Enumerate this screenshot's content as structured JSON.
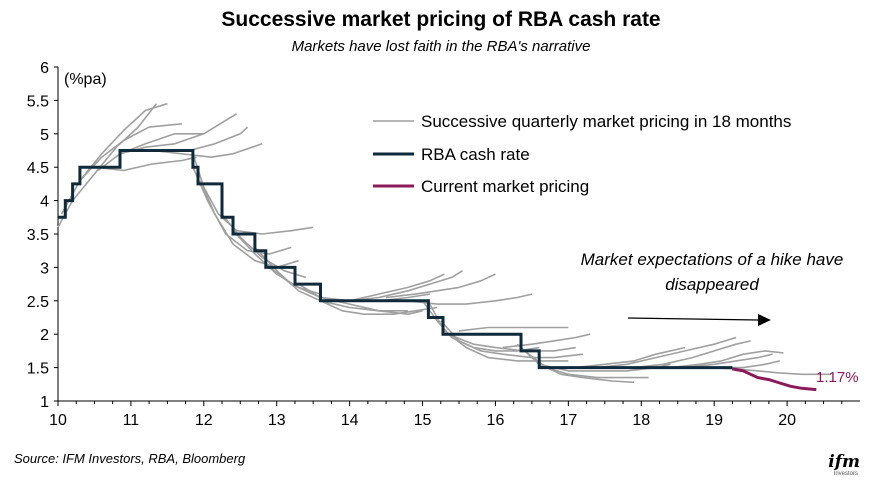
{
  "chart_data": {
    "type": "line",
    "title": "Successive market pricing of RBA cash rate",
    "subtitle": "Markets have lost faith in the RBA's narrative",
    "ylabel": "(%pa)",
    "xlabel": "",
    "xlim": [
      10,
      21
    ],
    "ylim": [
      1,
      6
    ],
    "x_ticks": [
      "10",
      "11",
      "12",
      "13",
      "14",
      "15",
      "16",
      "17",
      "18",
      "19",
      "20"
    ],
    "y_ticks": [
      "1",
      "1.5",
      "2",
      "2.5",
      "3",
      "3.5",
      "4",
      "4.5",
      "5",
      "5.5",
      "6"
    ],
    "legend": [
      {
        "label": "Successive quarterly market pricing in 18 months",
        "color": "#999999"
      },
      {
        "label": "RBA cash rate",
        "color": "#0e2a3b"
      },
      {
        "label": "Current market pricing",
        "color": "#8b1a5a"
      }
    ],
    "annotation": {
      "line1": "Market expectations of a hike have",
      "line2": "disappeared"
    },
    "end_label": "1.17%",
    "source": "Source: IFM Investors, RBA, Bloomberg",
    "series": [
      {
        "name": "RBA cash rate",
        "points": [
          [
            10,
            3.75
          ],
          [
            10.1,
            3.75
          ],
          [
            10.1,
            4.0
          ],
          [
            10.2,
            4.0
          ],
          [
            10.2,
            4.25
          ],
          [
            10.3,
            4.25
          ],
          [
            10.3,
            4.5
          ],
          [
            10.85,
            4.5
          ],
          [
            10.85,
            4.75
          ],
          [
            11.85,
            4.75
          ],
          [
            11.85,
            4.5
          ],
          [
            11.92,
            4.5
          ],
          [
            11.92,
            4.25
          ],
          [
            12.25,
            4.25
          ],
          [
            12.25,
            3.75
          ],
          [
            12.4,
            3.75
          ],
          [
            12.4,
            3.5
          ],
          [
            12.7,
            3.5
          ],
          [
            12.7,
            3.25
          ],
          [
            12.85,
            3.25
          ],
          [
            12.85,
            3.0
          ],
          [
            13.25,
            3.0
          ],
          [
            13.25,
            2.75
          ],
          [
            13.6,
            2.75
          ],
          [
            13.6,
            2.5
          ],
          [
            15.08,
            2.5
          ],
          [
            15.08,
            2.25
          ],
          [
            15.28,
            2.25
          ],
          [
            15.28,
            2.0
          ],
          [
            16.35,
            2.0
          ],
          [
            16.35,
            1.75
          ],
          [
            16.6,
            1.75
          ],
          [
            16.6,
            1.5
          ],
          [
            19.25,
            1.5
          ]
        ]
      },
      {
        "name": "Current market pricing",
        "points": [
          [
            19.25,
            1.48
          ],
          [
            19.4,
            1.45
          ],
          [
            19.5,
            1.4
          ],
          [
            19.6,
            1.35
          ],
          [
            19.75,
            1.32
          ],
          [
            19.9,
            1.27
          ],
          [
            20.05,
            1.22
          ],
          [
            20.2,
            1.19
          ],
          [
            20.4,
            1.17
          ]
        ]
      },
      {
        "name": "Successive quarterly market pricing in 18 months",
        "paths": [
          [
            [
              10,
              3.6
            ],
            [
              10.2,
              4.0
            ],
            [
              10.5,
              4.4
            ],
            [
              10.8,
              4.8
            ],
            [
              11.1,
              5.1
            ],
            [
              11.35,
              5.45
            ]
          ],
          [
            [
              10.05,
              3.8
            ],
            [
              10.3,
              4.3
            ],
            [
              10.6,
              4.7
            ],
            [
              10.9,
              5.05
            ],
            [
              11.2,
              5.35
            ],
            [
              11.5,
              5.45
            ]
          ],
          [
            [
              10.3,
              4.3
            ],
            [
              10.6,
              4.65
            ],
            [
              10.9,
              4.9
            ],
            [
              11.25,
              5.1
            ],
            [
              11.7,
              5.15
            ]
          ],
          [
            [
              10.55,
              4.45
            ],
            [
              10.85,
              4.7
            ],
            [
              11.2,
              4.85
            ],
            [
              11.6,
              5.0
            ],
            [
              12.0,
              5.0
            ]
          ],
          [
            [
              10.85,
              4.7
            ],
            [
              11.2,
              4.8
            ],
            [
              11.6,
              4.85
            ],
            [
              12.0,
              5.0
            ],
            [
              12.3,
              5.2
            ],
            [
              12.45,
              5.3
            ]
          ],
          [
            [
              11.1,
              4.75
            ],
            [
              11.45,
              4.75
            ],
            [
              11.8,
              4.75
            ],
            [
              12.15,
              4.85
            ],
            [
              12.5,
              5.0
            ],
            [
              12.6,
              5.1
            ]
          ],
          [
            [
              11.3,
              4.75
            ],
            [
              11.7,
              4.7
            ],
            [
              12.1,
              4.65
            ],
            [
              12.4,
              4.7
            ],
            [
              12.8,
              4.85
            ]
          ],
          [
            [
              10.5,
              4.5
            ],
            [
              10.9,
              4.45
            ],
            [
              11.3,
              4.55
            ],
            [
              11.7,
              4.6
            ],
            [
              11.9,
              4.65
            ]
          ],
          [
            [
              11.85,
              4.7
            ],
            [
              12.0,
              4.2
            ],
            [
              12.2,
              3.8
            ],
            [
              12.45,
              3.55
            ],
            [
              12.8,
              3.5
            ],
            [
              13.2,
              3.55
            ],
            [
              13.5,
              3.6
            ]
          ],
          [
            [
              11.85,
              4.5
            ],
            [
              12.05,
              4.0
            ],
            [
              12.3,
              3.5
            ],
            [
              12.6,
              3.25
            ],
            [
              12.9,
              3.2
            ],
            [
              13.2,
              3.3
            ]
          ],
          [
            [
              11.95,
              4.3
            ],
            [
              12.15,
              3.8
            ],
            [
              12.4,
              3.35
            ],
            [
              12.7,
              3.1
            ],
            [
              13.0,
              3.0
            ],
            [
              13.3,
              3.1
            ]
          ],
          [
            [
              12.25,
              3.8
            ],
            [
              12.5,
              3.45
            ],
            [
              12.8,
              3.15
            ],
            [
              13.1,
              2.95
            ],
            [
              13.4,
              2.85
            ]
          ],
          [
            [
              12.4,
              3.55
            ],
            [
              12.7,
              3.2
            ],
            [
              13.0,
              2.9
            ],
            [
              13.3,
              2.7
            ],
            [
              13.6,
              2.6
            ]
          ],
          [
            [
              12.7,
              3.3
            ],
            [
              13.0,
              2.95
            ],
            [
              13.3,
              2.65
            ],
            [
              13.6,
              2.5
            ],
            [
              14.0,
              2.4
            ],
            [
              14.4,
              2.35
            ],
            [
              14.8,
              2.35
            ]
          ],
          [
            [
              12.85,
              3.05
            ],
            [
              13.2,
              2.75
            ],
            [
              13.6,
              2.55
            ],
            [
              14.0,
              2.5
            ],
            [
              14.4,
              2.5
            ],
            [
              14.8,
              2.55
            ],
            [
              15.1,
              2.6
            ]
          ],
          [
            [
              13.3,
              2.75
            ],
            [
              13.6,
              2.55
            ],
            [
              14.0,
              2.45
            ],
            [
              14.4,
              2.35
            ],
            [
              14.8,
              2.3
            ],
            [
              15.0,
              2.35
            ]
          ],
          [
            [
              13.6,
              2.5
            ],
            [
              13.9,
              2.35
            ],
            [
              14.2,
              2.3
            ],
            [
              14.6,
              2.3
            ],
            [
              14.9,
              2.35
            ],
            [
              15.2,
              2.4
            ]
          ],
          [
            [
              13.6,
              2.55
            ],
            [
              14.0,
              2.5
            ],
            [
              14.4,
              2.6
            ],
            [
              14.8,
              2.7
            ],
            [
              15.1,
              2.8
            ],
            [
              15.3,
              2.9
            ]
          ],
          [
            [
              14.0,
              2.5
            ],
            [
              14.4,
              2.55
            ],
            [
              14.8,
              2.65
            ],
            [
              15.1,
              2.75
            ],
            [
              15.4,
              2.85
            ],
            [
              15.55,
              2.95
            ]
          ],
          [
            [
              14.5,
              2.55
            ],
            [
              14.9,
              2.6
            ],
            [
              15.2,
              2.65
            ],
            [
              15.5,
              2.7
            ],
            [
              15.8,
              2.8
            ],
            [
              16.0,
              2.9
            ]
          ],
          [
            [
              14.8,
              2.5
            ],
            [
              15.2,
              2.45
            ],
            [
              15.6,
              2.45
            ],
            [
              16.0,
              2.5
            ],
            [
              16.3,
              2.55
            ],
            [
              16.5,
              2.6
            ]
          ],
          [
            [
              15.0,
              2.5
            ],
            [
              15.2,
              2.2
            ],
            [
              15.4,
              1.95
            ],
            [
              15.7,
              1.8
            ],
            [
              16.0,
              1.75
            ],
            [
              16.3,
              1.75
            ],
            [
              16.6,
              1.8
            ]
          ],
          [
            [
              15.1,
              2.45
            ],
            [
              15.3,
              2.05
            ],
            [
              15.6,
              1.8
            ],
            [
              15.9,
              1.65
            ],
            [
              16.3,
              1.6
            ],
            [
              16.6,
              1.6
            ],
            [
              17.0,
              1.6
            ]
          ],
          [
            [
              15.25,
              2.2
            ],
            [
              15.5,
              1.9
            ],
            [
              15.8,
              1.75
            ],
            [
              16.1,
              1.7
            ],
            [
              16.5,
              1.65
            ],
            [
              16.8,
              1.65
            ],
            [
              17.2,
              1.7
            ]
          ],
          [
            [
              15.35,
              2.0
            ],
            [
              15.7,
              1.85
            ],
            [
              16.0,
              1.8
            ],
            [
              16.4,
              1.75
            ],
            [
              16.8,
              1.75
            ],
            [
              17.1,
              1.8
            ]
          ],
          [
            [
              15.5,
              2.05
            ],
            [
              15.9,
              2.1
            ],
            [
              16.3,
              2.1
            ],
            [
              16.7,
              2.1
            ],
            [
              17.0,
              2.1
            ]
          ],
          [
            [
              16.3,
              1.85
            ],
            [
              16.6,
              1.55
            ],
            [
              16.9,
              1.4
            ],
            [
              17.2,
              1.35
            ],
            [
              17.6,
              1.3
            ],
            [
              17.9,
              1.28
            ]
          ],
          [
            [
              16.4,
              1.75
            ],
            [
              16.7,
              1.5
            ],
            [
              17.0,
              1.4
            ],
            [
              17.4,
              1.35
            ],
            [
              17.8,
              1.35
            ],
            [
              18.1,
              1.35
            ]
          ],
          [
            [
              16.6,
              1.55
            ],
            [
              17.0,
              1.45
            ],
            [
              17.4,
              1.45
            ],
            [
              17.8,
              1.45
            ],
            [
              18.2,
              1.5
            ],
            [
              18.4,
              1.55
            ]
          ],
          [
            [
              16.1,
              1.8
            ],
            [
              16.5,
              1.85
            ],
            [
              16.8,
              1.9
            ],
            [
              17.1,
              1.95
            ],
            [
              17.3,
              2.0
            ]
          ],
          [
            [
              16.7,
              1.5
            ],
            [
              17.1,
              1.5
            ],
            [
              17.5,
              1.55
            ],
            [
              17.9,
              1.6
            ],
            [
              18.2,
              1.7
            ],
            [
              18.6,
              1.8
            ]
          ],
          [
            [
              17.0,
              1.5
            ],
            [
              17.4,
              1.5
            ],
            [
              17.8,
              1.55
            ],
            [
              18.2,
              1.65
            ],
            [
              18.6,
              1.75
            ],
            [
              19.0,
              1.85
            ],
            [
              19.3,
              1.95
            ]
          ],
          [
            [
              17.5,
              1.5
            ],
            [
              17.9,
              1.5
            ],
            [
              18.3,
              1.55
            ],
            [
              18.7,
              1.65
            ],
            [
              19.0,
              1.75
            ],
            [
              19.3,
              1.85
            ],
            [
              19.5,
              1.9
            ]
          ],
          [
            [
              18.0,
              1.5
            ],
            [
              18.4,
              1.5
            ],
            [
              18.8,
              1.55
            ],
            [
              19.1,
              1.6
            ],
            [
              19.4,
              1.7
            ],
            [
              19.7,
              1.75
            ],
            [
              19.95,
              1.72
            ]
          ],
          [
            [
              18.2,
              1.5
            ],
            [
              18.6,
              1.5
            ],
            [
              19.0,
              1.55
            ],
            [
              19.3,
              1.6
            ],
            [
              19.6,
              1.65
            ],
            [
              19.8,
              1.7
            ]
          ],
          [
            [
              18.6,
              1.5
            ],
            [
              19.0,
              1.5
            ],
            [
              19.4,
              1.5
            ],
            [
              19.7,
              1.55
            ],
            [
              19.9,
              1.6
            ]
          ],
          [
            [
              18.9,
              1.5
            ],
            [
              19.3,
              1.48
            ],
            [
              19.6,
              1.45
            ],
            [
              19.9,
              1.42
            ],
            [
              20.2,
              1.4
            ],
            [
              20.6,
              1.4
            ]
          ]
        ]
      }
    ]
  }
}
